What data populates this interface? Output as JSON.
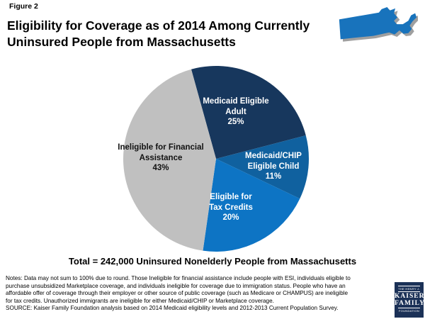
{
  "figure_label": "Figure 2",
  "header": {
    "title_lines": [
      "Eligibility for Coverage as of 2014 Among Currently",
      "Uninsured People from Massachusetts"
    ]
  },
  "colors": {
    "map": "#1873bc",
    "slice_medicaid_adult": "#17375d",
    "slice_medicaid_chip_child": "#10619f",
    "slice_tax_credits": "#0d74c4",
    "slice_ineligible": "#c0c0c0",
    "logo_background": "#1b3157"
  },
  "chart_data": {
    "type": "pie",
    "title": "Eligibility for Coverage as of 2014 Among Currently Uninsured People from Massachusetts",
    "start_angle_deg": -15.5,
    "legend_position": "labels-inside-slices",
    "slices": [
      {
        "label": "Medicaid Eligible Adult",
        "value": 25,
        "pct_label": "25%",
        "color": "#17375d",
        "lines": [
          "Medicaid Eligible",
          "Adult",
          "25%"
        ]
      },
      {
        "label": "Medicaid/CHIP Eligible Child",
        "value": 11,
        "pct_label": "11%",
        "color": "#10619f",
        "lines": [
          "Medicaid/CHIP",
          "Eligible Child",
          "11%"
        ]
      },
      {
        "label": "Eligible for Tax Credits",
        "value": 20,
        "pct_label": "20%",
        "color": "#0d74c4",
        "lines": [
          "Eligible for",
          "Tax Credits",
          "20%"
        ]
      },
      {
        "label": "Ineligible for Financial Assistance",
        "value": 43,
        "pct_label": "43%",
        "color": "#c0c0c0",
        "lines": [
          "Ineligible for Financial",
          "Assistance",
          "43%"
        ]
      }
    ],
    "total_label": "Total = 242,000 Uninsured Nonelderly People from Massachusetts"
  },
  "notes_lines": [
    "Notes: Data may not sum to 100% due to round. Those Ineligible for financial assistance include people with ESI, individuals eligible to",
    "purchase unsubsidized Marketplace coverage, and individuals ineligible for coverage due to immigration status. People who have an",
    "affordable offer of coverage through their employer or other source of public coverage (such as Medicare or CHAMPUS) are ineligible",
    "for tax credits. Unauthorized immigrants are ineligible for either Medicaid/CHIP or Marketplace coverage.",
    "SOURCE: Kaiser Family Foundation analysis based on 2014 Medicaid eligibility levels and 2012-2013 Current Population Survey."
  ],
  "logo": {
    "line1": "THE HENRY J.",
    "line2": "KAISER",
    "line3": "FAMILY",
    "line4": "FOUNDATION"
  }
}
